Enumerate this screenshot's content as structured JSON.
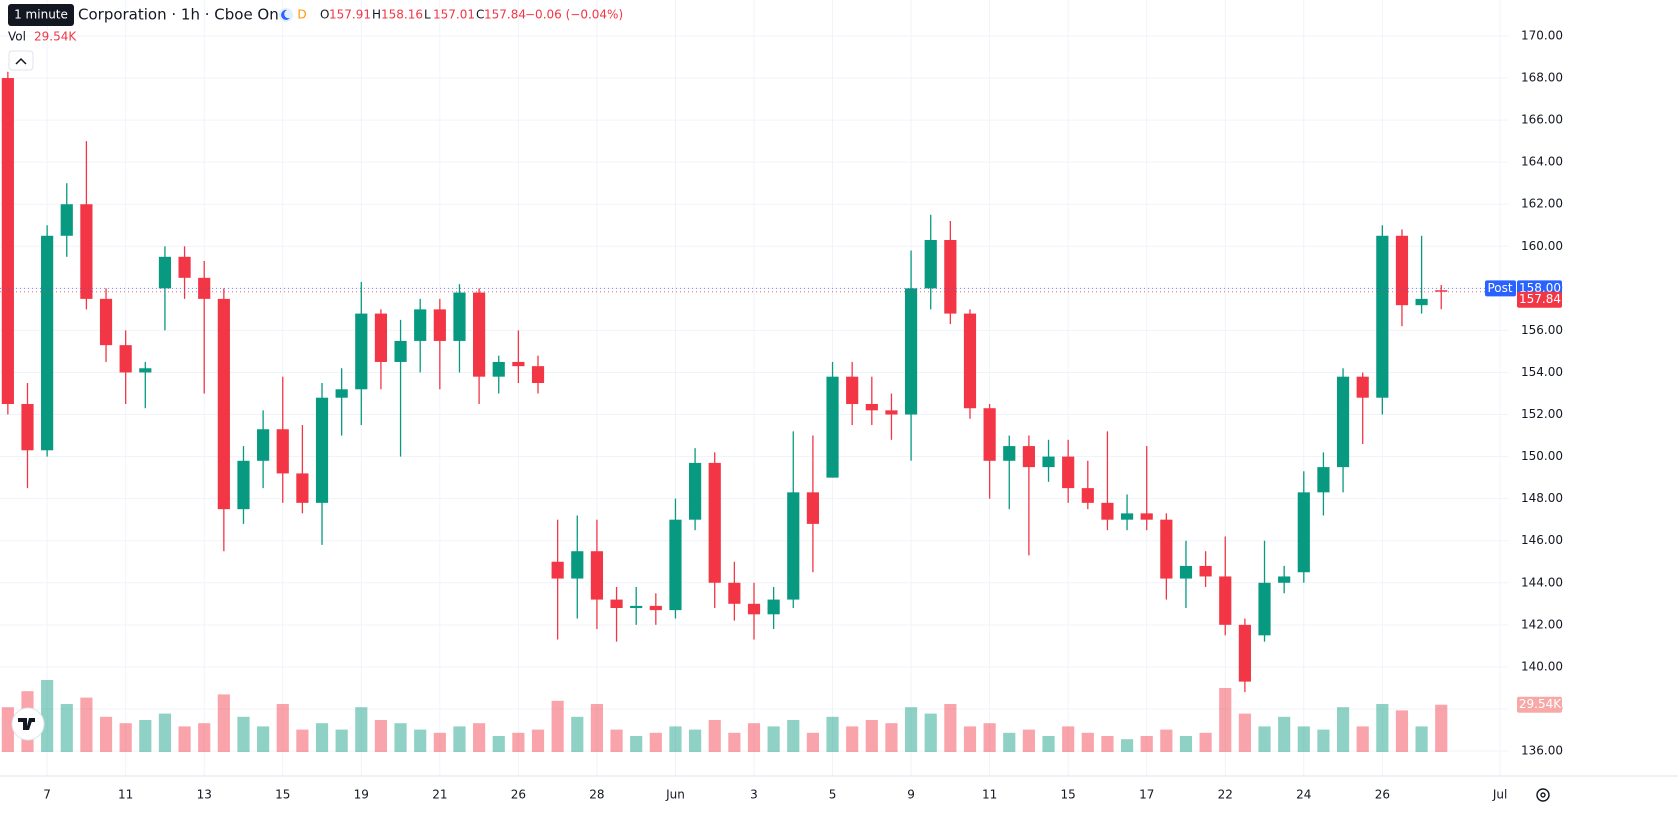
{
  "chart_data": {
    "type": "candlestick",
    "title": "Corporation · 1h · Cboe One",
    "tooltip": "1 minute",
    "session_badge": "D",
    "ohlc_letters": [
      "O",
      "H",
      "L",
      "C"
    ],
    "change": "−0.06 (−0.04%)",
    "volume_title": "Vol",
    "last_volume": {
      "value": 29.54,
      "label": "29.54K"
    },
    "post_label": "Post",
    "post_price": {
      "value": 158,
      "label": "158.00"
    },
    "up_color": "#089981",
    "down_color": "#f23645",
    "grid": true,
    "ylim": [
      136,
      170
    ],
    "yticks": [
      {
        "value": 136,
        "label": "136.00"
      },
      {
        "value": 138,
        "label": "138.00"
      },
      {
        "value": 140,
        "label": "140.00"
      },
      {
        "value": 142,
        "label": "142.00"
      },
      {
        "value": 144,
        "label": "144.00"
      },
      {
        "value": 146,
        "label": "146.00"
      },
      {
        "value": 148,
        "label": "148.00"
      },
      {
        "value": 150,
        "label": "150.00"
      },
      {
        "value": 152,
        "label": "152.00"
      },
      {
        "value": 154,
        "label": "154.00"
      },
      {
        "value": 156,
        "label": "156.00"
      },
      {
        "value": 158,
        "label": "158.00"
      },
      {
        "value": 160,
        "label": "160.00"
      },
      {
        "value": 162,
        "label": "162.00"
      },
      {
        "value": 164,
        "label": "164.00"
      },
      {
        "value": 166,
        "label": "166.00"
      },
      {
        "value": 168,
        "label": "168.00"
      },
      {
        "value": 170,
        "label": "170.00"
      }
    ],
    "xlim": [
      -0.2,
      38.2
    ],
    "xticks": [
      {
        "value": 1,
        "label": "7"
      },
      {
        "value": 3,
        "label": "11"
      },
      {
        "value": 5,
        "label": "13"
      },
      {
        "value": 7,
        "label": "15"
      },
      {
        "value": 9,
        "label": "19"
      },
      {
        "value": 11,
        "label": "21"
      },
      {
        "value": 13,
        "label": "26"
      },
      {
        "value": 15,
        "label": "28"
      },
      {
        "value": 17,
        "label": "Jun"
      },
      {
        "value": 19,
        "label": "3"
      },
      {
        "value": 21,
        "label": "5"
      },
      {
        "value": 23,
        "label": "9"
      },
      {
        "value": 25,
        "label": "11"
      },
      {
        "value": 27,
        "label": "15"
      },
      {
        "value": 29,
        "label": "17"
      },
      {
        "value": 31,
        "label": "22"
      },
      {
        "value": 33,
        "label": "24"
      },
      {
        "value": 35,
        "label": "26"
      },
      {
        "value": 38,
        "label": "Jul"
      }
    ],
    "x": [
      0,
      0.5,
      1,
      1.5,
      2,
      2.5,
      3,
      3.5,
      4,
      4.5,
      5,
      5.5,
      6,
      6.5,
      7,
      7.5,
      8,
      8.5,
      9,
      9.5,
      10,
      10.5,
      11,
      11.5,
      12,
      12.5,
      13,
      13.5,
      14,
      14.5,
      15,
      15.5,
      16,
      16.5,
      17,
      17.5,
      18,
      18.5,
      19,
      19.5,
      20,
      20.5,
      21,
      21.5,
      22,
      22.5,
      23,
      23.5,
      24,
      24.5,
      25,
      25.5,
      26,
      26.5,
      27,
      27.5,
      28,
      28.5,
      29,
      29.5,
      30,
      30.5,
      31,
      31.5,
      32,
      32.5,
      33,
      33.5,
      34,
      34.5,
      35,
      35.5,
      36,
      36.5
    ],
    "ohlc": [
      [
        168,
        168.3,
        152,
        152.5
      ],
      [
        152.5,
        153.5,
        148.5,
        150.3
      ],
      [
        150.3,
        161,
        150,
        160.5
      ],
      [
        160.5,
        163,
        159.5,
        162
      ],
      [
        162,
        165,
        157,
        157.5
      ],
      [
        157.5,
        158,
        154.5,
        155.3
      ],
      [
        155.3,
        156,
        152.5,
        154
      ],
      [
        154,
        154.5,
        152.3,
        154.2
      ],
      [
        158,
        160,
        156,
        159.5
      ],
      [
        159.5,
        160,
        157.5,
        158.5
      ],
      [
        158.5,
        159.3,
        153,
        157.5
      ],
      [
        157.5,
        158,
        145.5,
        147.5
      ],
      [
        147.5,
        150.5,
        146.8,
        149.8
      ],
      [
        149.8,
        152.2,
        148.5,
        151.3
      ],
      [
        151.3,
        153.8,
        147.8,
        149.2
      ],
      [
        149.2,
        151.5,
        147.3,
        147.8
      ],
      [
        147.8,
        153.5,
        145.8,
        152.8
      ],
      [
        152.8,
        154.2,
        151,
        153.2
      ],
      [
        153.2,
        158.3,
        151.5,
        156.8
      ],
      [
        156.8,
        157,
        153.2,
        154.5
      ],
      [
        154.5,
        156.5,
        150,
        155.5
      ],
      [
        155.5,
        157.5,
        154,
        157
      ],
      [
        157,
        157.5,
        153.2,
        155.5
      ],
      [
        155.5,
        158.2,
        154,
        157.8
      ],
      [
        157.8,
        158,
        152.5,
        153.8
      ],
      [
        153.8,
        154.8,
        153,
        154.5
      ],
      [
        154.5,
        156,
        153.5,
        154.3
      ],
      [
        154.3,
        154.8,
        153,
        153.5
      ],
      [
        145,
        147,
        141.3,
        144.2
      ],
      [
        144.2,
        147.2,
        142.3,
        145.5
      ],
      [
        145.5,
        147,
        141.8,
        143.2
      ],
      [
        143.2,
        143.8,
        141.2,
        142.8
      ],
      [
        142.8,
        143.8,
        142,
        142.9
      ],
      [
        142.9,
        143.5,
        142,
        142.7
      ],
      [
        142.7,
        148,
        142.3,
        147
      ],
      [
        147,
        150.4,
        146.5,
        149.7
      ],
      [
        149.7,
        150.2,
        142.8,
        144
      ],
      [
        144,
        145,
        142.2,
        143
      ],
      [
        143,
        144,
        141.3,
        142.5
      ],
      [
        142.5,
        143.8,
        141.8,
        143.2
      ],
      [
        143.2,
        151.2,
        142.8,
        148.3
      ],
      [
        148.3,
        151,
        144.5,
        146.8
      ],
      [
        149,
        154.5,
        149,
        153.8
      ],
      [
        153.8,
        154.5,
        151.5,
        152.5
      ],
      [
        152.5,
        153.8,
        151.5,
        152.2
      ],
      [
        152.2,
        153,
        150.8,
        152
      ],
      [
        152,
        159.8,
        149.8,
        158
      ],
      [
        158,
        161.5,
        157,
        160.3
      ],
      [
        160.3,
        161.2,
        156.3,
        156.8
      ],
      [
        156.8,
        157,
        151.8,
        152.3
      ],
      [
        152.3,
        152.5,
        148,
        149.8
      ],
      [
        149.8,
        151,
        147.5,
        150.5
      ],
      [
        150.5,
        151,
        145.3,
        149.5
      ],
      [
        149.5,
        150.8,
        148.8,
        150
      ],
      [
        150,
        150.8,
        147.8,
        148.5
      ],
      [
        148.5,
        149.8,
        147.5,
        147.8
      ],
      [
        147.8,
        151.2,
        146.5,
        147
      ],
      [
        147,
        148.2,
        146.5,
        147.3
      ],
      [
        147.3,
        150.5,
        146.5,
        147
      ],
      [
        147,
        147.3,
        143.2,
        144.2
      ],
      [
        144.2,
        146,
        142.8,
        144.8
      ],
      [
        144.8,
        145.5,
        143.8,
        144.3
      ],
      [
        144.3,
        146.2,
        141.5,
        142
      ],
      [
        142,
        142.3,
        138.8,
        139.3
      ],
      [
        141.5,
        146,
        141.2,
        144
      ],
      [
        144,
        144.8,
        143.5,
        144.3
      ],
      [
        144.5,
        149.3,
        144,
        148.3
      ],
      [
        148.3,
        150.2,
        147.2,
        149.5
      ],
      [
        149.5,
        154.2,
        148.3,
        153.8
      ],
      [
        153.8,
        154,
        150.6,
        152.8
      ],
      [
        152.8,
        161,
        152,
        160.5
      ],
      [
        160.5,
        160.8,
        156.2,
        157.2
      ],
      [
        157.2,
        160.5,
        156.8,
        157.5
      ],
      [
        157.91,
        158.16,
        157.01,
        157.84
      ]
    ],
    "volume": [
      28,
      38,
      45,
      30,
      34,
      22,
      18,
      20,
      24,
      16,
      18,
      36,
      22,
      16,
      30,
      14,
      18,
      14,
      28,
      20,
      18,
      14,
      12,
      16,
      18,
      10,
      12,
      14,
      32,
      22,
      30,
      14,
      10,
      12,
      16,
      14,
      20,
      12,
      18,
      16,
      20,
      12,
      22,
      16,
      20,
      18,
      28,
      24,
      30,
      16,
      18,
      12,
      14,
      10,
      16,
      12,
      10,
      8,
      10,
      14,
      10,
      12,
      40,
      24,
      16,
      22,
      16,
      14,
      28,
      16,
      30,
      26,
      16,
      29.54
    ]
  }
}
